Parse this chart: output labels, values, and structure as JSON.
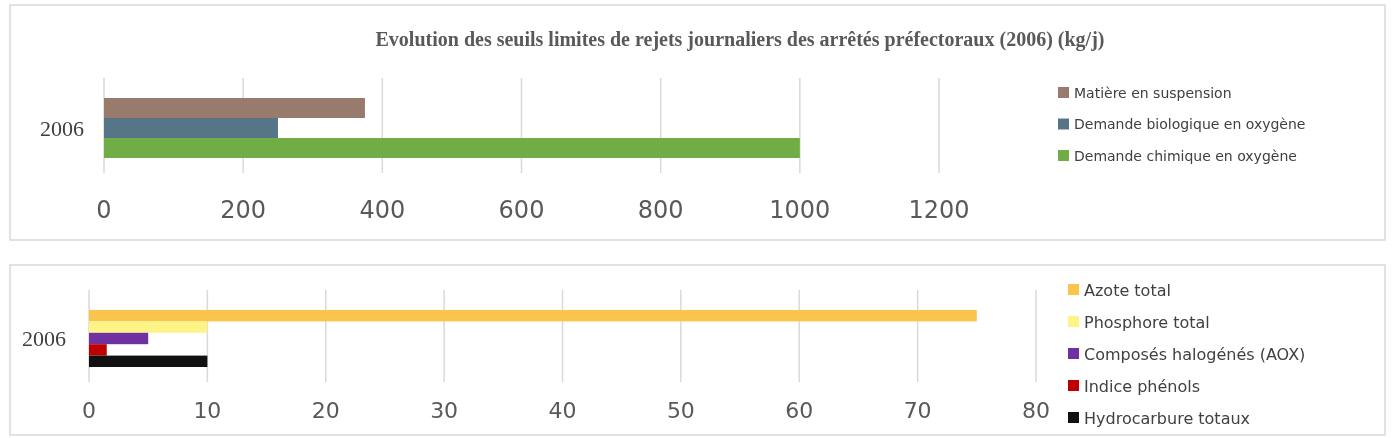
{
  "chart_data": [
    {
      "type": "bar",
      "orientation": "horizontal",
      "title": "Evolution des seuils limites de rejets journaliers des arrêtés préfectoraux (2006) (kg/j)",
      "categories": [
        "2006"
      ],
      "series": [
        {
          "name": "Matière en suspension",
          "color": "#997b6e",
          "values": [
            375
          ]
        },
        {
          "name": "Demande biologique en oxygène",
          "color": "#567587",
          "values": [
            250
          ]
        },
        {
          "name": "Demande chimique en oxygène",
          "color": "#70ad47",
          "values": [
            1000
          ]
        }
      ],
      "xlim": [
        0,
        1200
      ],
      "xticks": [
        0,
        200,
        400,
        600,
        800,
        1000,
        1200
      ],
      "grid": "x",
      "legend": "right"
    },
    {
      "type": "bar",
      "orientation": "horizontal",
      "categories": [
        "2006"
      ],
      "series": [
        {
          "name": "Azote total",
          "color": "#fbc54c",
          "values": [
            75
          ]
        },
        {
          "name": "Phosphore total",
          "color": "#fdf386",
          "values": [
            10
          ]
        },
        {
          "name": "Composés halogénés (AOX)",
          "color": "#7030a0",
          "values": [
            5
          ]
        },
        {
          "name": "Indice phénols",
          "color": "#c00000",
          "values": [
            1.5
          ]
        },
        {
          "name": "Hydrocarbure totaux",
          "color": "#111111",
          "values": [
            10
          ]
        }
      ],
      "xlim": [
        0,
        80
      ],
      "xticks": [
        0,
        10,
        20,
        30,
        40,
        50,
        60,
        70,
        80
      ],
      "grid": "x",
      "legend": "right"
    }
  ]
}
